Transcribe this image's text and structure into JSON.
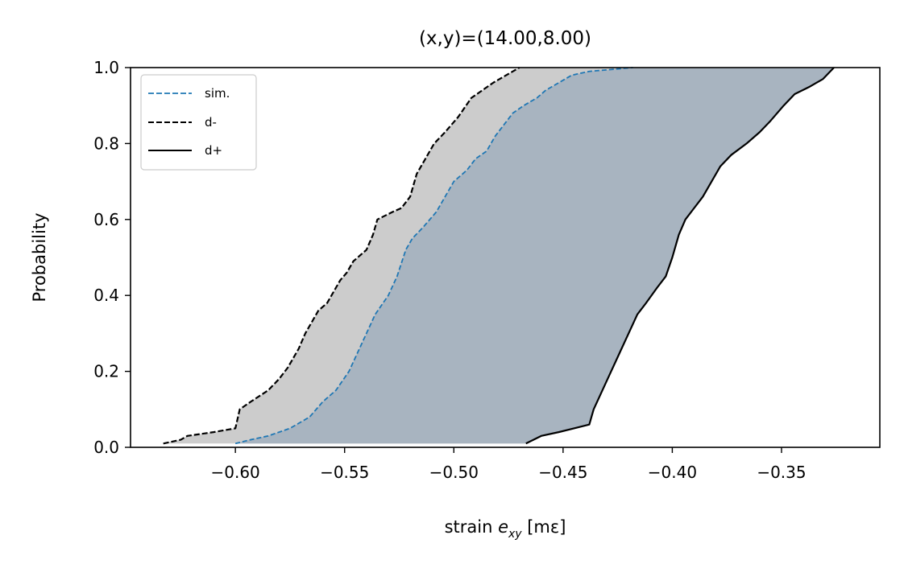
{
  "chart_data": {
    "type": "line",
    "title": "(x,y)=(14.00,8.00)",
    "xlabel_parts": {
      "prefix": "strain ",
      "var": "e",
      "sub": "xy",
      "unit": " [mε]"
    },
    "ylabel": "Probability",
    "xlim": [
      -0.648,
      -0.305
    ],
    "ylim": [
      0.0,
      1.0
    ],
    "xticks": [
      -0.6,
      -0.55,
      -0.5,
      -0.45,
      -0.4,
      -0.35
    ],
    "xtick_labels": [
      "−0.60",
      "−0.55",
      "−0.50",
      "−0.45",
      "−0.40",
      "−0.35"
    ],
    "yticks": [
      0.0,
      0.2,
      0.4,
      0.6,
      0.8,
      1.0
    ],
    "ytick_labels": [
      "0.0",
      "0.2",
      "0.4",
      "0.6",
      "0.8",
      "1.0"
    ],
    "grid": false,
    "legend_position": "top-left",
    "legend": [
      "sim.",
      "d-",
      "d+"
    ],
    "colors": {
      "sim": "#1f77b4",
      "bound": "#000000",
      "outer_fill": "#cccccc",
      "inner_fill": "#a8b4c0"
    },
    "series": [
      {
        "name": "d-",
        "style": "dashed",
        "x": [
          -0.633,
          -0.625,
          -0.622,
          -0.61,
          -0.6,
          -0.598,
          -0.593,
          -0.585,
          -0.58,
          -0.576,
          -0.571,
          -0.568,
          -0.565,
          -0.562,
          -0.558,
          -0.554,
          -0.552,
          -0.549,
          -0.546,
          -0.54,
          -0.537,
          -0.535,
          -0.528,
          -0.524,
          -0.52,
          -0.517,
          -0.513,
          -0.509,
          -0.504,
          -0.498,
          -0.492,
          -0.482,
          -0.47
        ],
        "y": [
          0.01,
          0.02,
          0.03,
          0.04,
          0.05,
          0.1,
          0.12,
          0.15,
          0.18,
          0.21,
          0.26,
          0.3,
          0.33,
          0.36,
          0.38,
          0.42,
          0.44,
          0.46,
          0.49,
          0.52,
          0.56,
          0.6,
          0.62,
          0.63,
          0.66,
          0.72,
          0.76,
          0.8,
          0.83,
          0.87,
          0.92,
          0.96,
          1.0
        ]
      },
      {
        "name": "sim.",
        "style": "dashed",
        "x": [
          -0.6,
          -0.593,
          -0.585,
          -0.575,
          -0.566,
          -0.56,
          -0.554,
          -0.548,
          -0.544,
          -0.54,
          -0.536,
          -0.53,
          -0.526,
          -0.522,
          -0.519,
          -0.514,
          -0.508,
          -0.504,
          -0.5,
          -0.494,
          -0.49,
          -0.485,
          -0.481,
          -0.477,
          -0.473,
          -0.468,
          -0.462,
          -0.458,
          -0.452,
          -0.446,
          -0.438,
          -0.428,
          -0.418
        ],
        "y": [
          0.01,
          0.02,
          0.03,
          0.05,
          0.08,
          0.12,
          0.15,
          0.2,
          0.25,
          0.3,
          0.35,
          0.4,
          0.45,
          0.52,
          0.55,
          0.58,
          0.62,
          0.66,
          0.7,
          0.73,
          0.76,
          0.78,
          0.82,
          0.85,
          0.88,
          0.9,
          0.92,
          0.94,
          0.96,
          0.98,
          0.99,
          0.995,
          1.0
        ]
      },
      {
        "name": "d+",
        "style": "solid",
        "x": [
          -0.467,
          -0.46,
          -0.452,
          -0.445,
          -0.438,
          -0.436,
          -0.432,
          -0.428,
          -0.424,
          -0.42,
          -0.416,
          -0.412,
          -0.407,
          -0.403,
          -0.4,
          -0.397,
          -0.394,
          -0.39,
          -0.386,
          -0.382,
          -0.378,
          -0.373,
          -0.366,
          -0.36,
          -0.355,
          -0.349,
          -0.344,
          -0.337,
          -0.331,
          -0.326
        ],
        "y": [
          0.01,
          0.03,
          0.04,
          0.05,
          0.06,
          0.1,
          0.15,
          0.2,
          0.25,
          0.3,
          0.35,
          0.38,
          0.42,
          0.45,
          0.5,
          0.56,
          0.6,
          0.63,
          0.66,
          0.7,
          0.74,
          0.77,
          0.8,
          0.83,
          0.86,
          0.9,
          0.93,
          0.95,
          0.97,
          1.0
        ]
      }
    ]
  }
}
